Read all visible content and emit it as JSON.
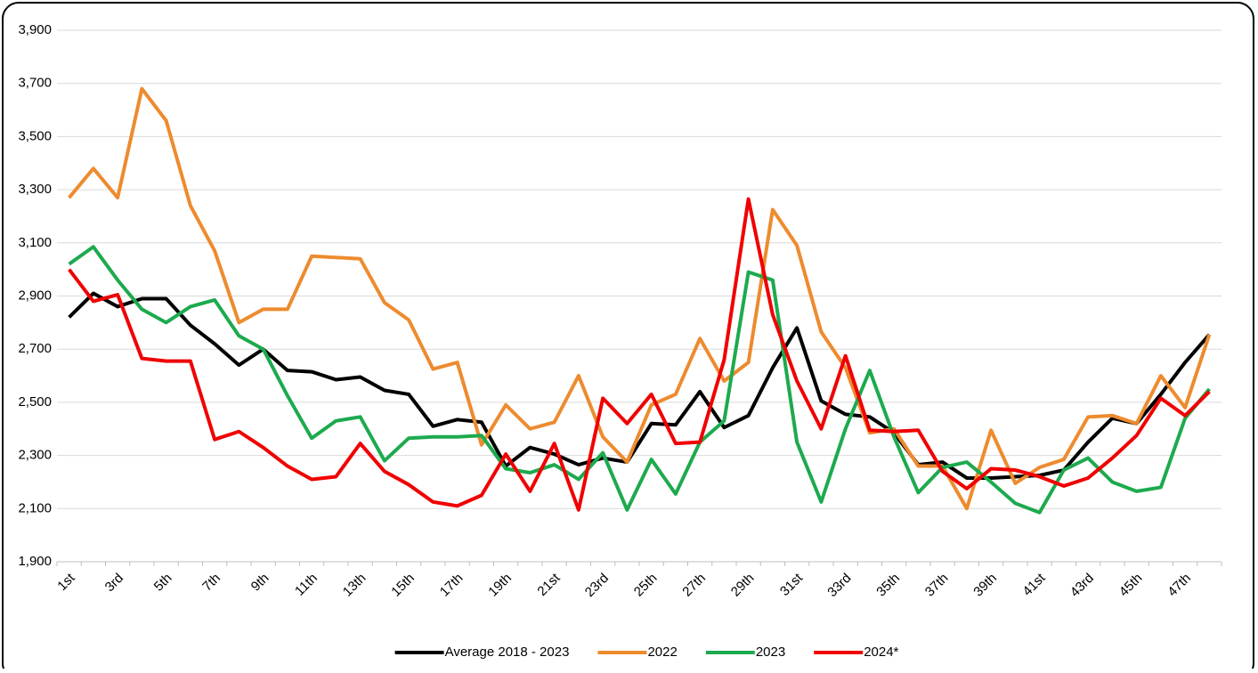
{
  "chart_data": {
    "type": "line",
    "categories": [
      "1st",
      null,
      "3rd",
      null,
      "5th",
      null,
      "7th",
      null,
      "9th",
      null,
      "11th",
      null,
      "13th",
      null,
      "15th",
      null,
      "17th",
      null,
      "19th",
      null,
      "21st",
      null,
      "23rd",
      null,
      "25th",
      null,
      "27th",
      null,
      "29th",
      null,
      "31st",
      null,
      "33rd",
      null,
      "35th",
      null,
      "37th",
      null,
      "39th",
      null,
      "41st",
      null,
      "43rd",
      null,
      "45th",
      null,
      "47th",
      null
    ],
    "series": [
      {
        "name": "Average 2018 - 2023",
        "color": "#000000",
        "values": [
          2820,
          2910,
          2860,
          2890,
          2890,
          2790,
          2720,
          2640,
          2700,
          2620,
          2615,
          2585,
          2595,
          2545,
          2530,
          2410,
          2435,
          2425,
          2260,
          2330,
          2305,
          2265,
          2290,
          2275,
          2420,
          2415,
          2540,
          2405,
          2450,
          2630,
          2780,
          2505,
          2455,
          2445,
          2385,
          2265,
          2275,
          2215,
          2215,
          2220,
          2225,
          2245,
          2350,
          2440,
          2420,
          2530,
          2650,
          2755
        ]
      },
      {
        "name": "2022",
        "color": "#ED8B2F",
        "values": [
          3270,
          3380,
          3270,
          3680,
          3560,
          3240,
          3070,
          2800,
          2850,
          2850,
          3050,
          3045,
          3040,
          2875,
          2810,
          2625,
          2650,
          2340,
          2490,
          2400,
          2425,
          2600,
          2370,
          2275,
          2490,
          2530,
          2740,
          2580,
          2650,
          3225,
          3090,
          2765,
          2630,
          2385,
          2400,
          2260,
          2260,
          2100,
          2395,
          2195,
          2255,
          2285,
          2445,
          2450,
          2420,
          2600,
          2480,
          2755
        ]
      },
      {
        "name": "2023",
        "color": "#1DAA4E",
        "values": [
          3020,
          3085,
          2960,
          2850,
          2800,
          2860,
          2885,
          2750,
          2700,
          2525,
          2365,
          2430,
          2445,
          2280,
          2365,
          2370,
          2370,
          2375,
          2250,
          2235,
          2265,
          2210,
          2310,
          2095,
          2285,
          2155,
          2350,
          2430,
          2990,
          2960,
          2350,
          2125,
          2400,
          2620,
          2370,
          2160,
          2255,
          2275,
          2200,
          2120,
          2085,
          2245,
          2290,
          2200,
          2165,
          2180,
          2440,
          2550
        ]
      },
      {
        "name": "2024*",
        "color": "#F00000",
        "values": [
          3000,
          2880,
          2905,
          2665,
          2655,
          2655,
          2360,
          2390,
          2330,
          2260,
          2210,
          2220,
          2345,
          2240,
          2190,
          2125,
          2110,
          2150,
          2305,
          2165,
          2345,
          2095,
          2515,
          2420,
          2530,
          2345,
          2350,
          2660,
          3265,
          2830,
          2580,
          2400,
          2675,
          2395,
          2390,
          2395,
          2240,
          2175,
          2250,
          2245,
          2220,
          2185,
          2215,
          2290,
          2375,
          2515,
          2450,
          2540
        ]
      }
    ],
    "ylim": [
      1900,
      3900
    ],
    "yticks": [
      {
        "value": 1900,
        "label": "1,900"
      },
      {
        "value": 2100,
        "label": "2,100"
      },
      {
        "value": 2300,
        "label": "2,300"
      },
      {
        "value": 2500,
        "label": "2,500"
      },
      {
        "value": 2700,
        "label": "2,700"
      },
      {
        "value": 2900,
        "label": "2,900"
      },
      {
        "value": 3100,
        "label": "3,100"
      },
      {
        "value": 3300,
        "label": "3,300"
      },
      {
        "value": 3500,
        "label": "3,500"
      },
      {
        "value": 3700,
        "label": "3,700"
      },
      {
        "value": 3900,
        "label": "3,900"
      }
    ],
    "grid": true,
    "legend": "bottom"
  }
}
